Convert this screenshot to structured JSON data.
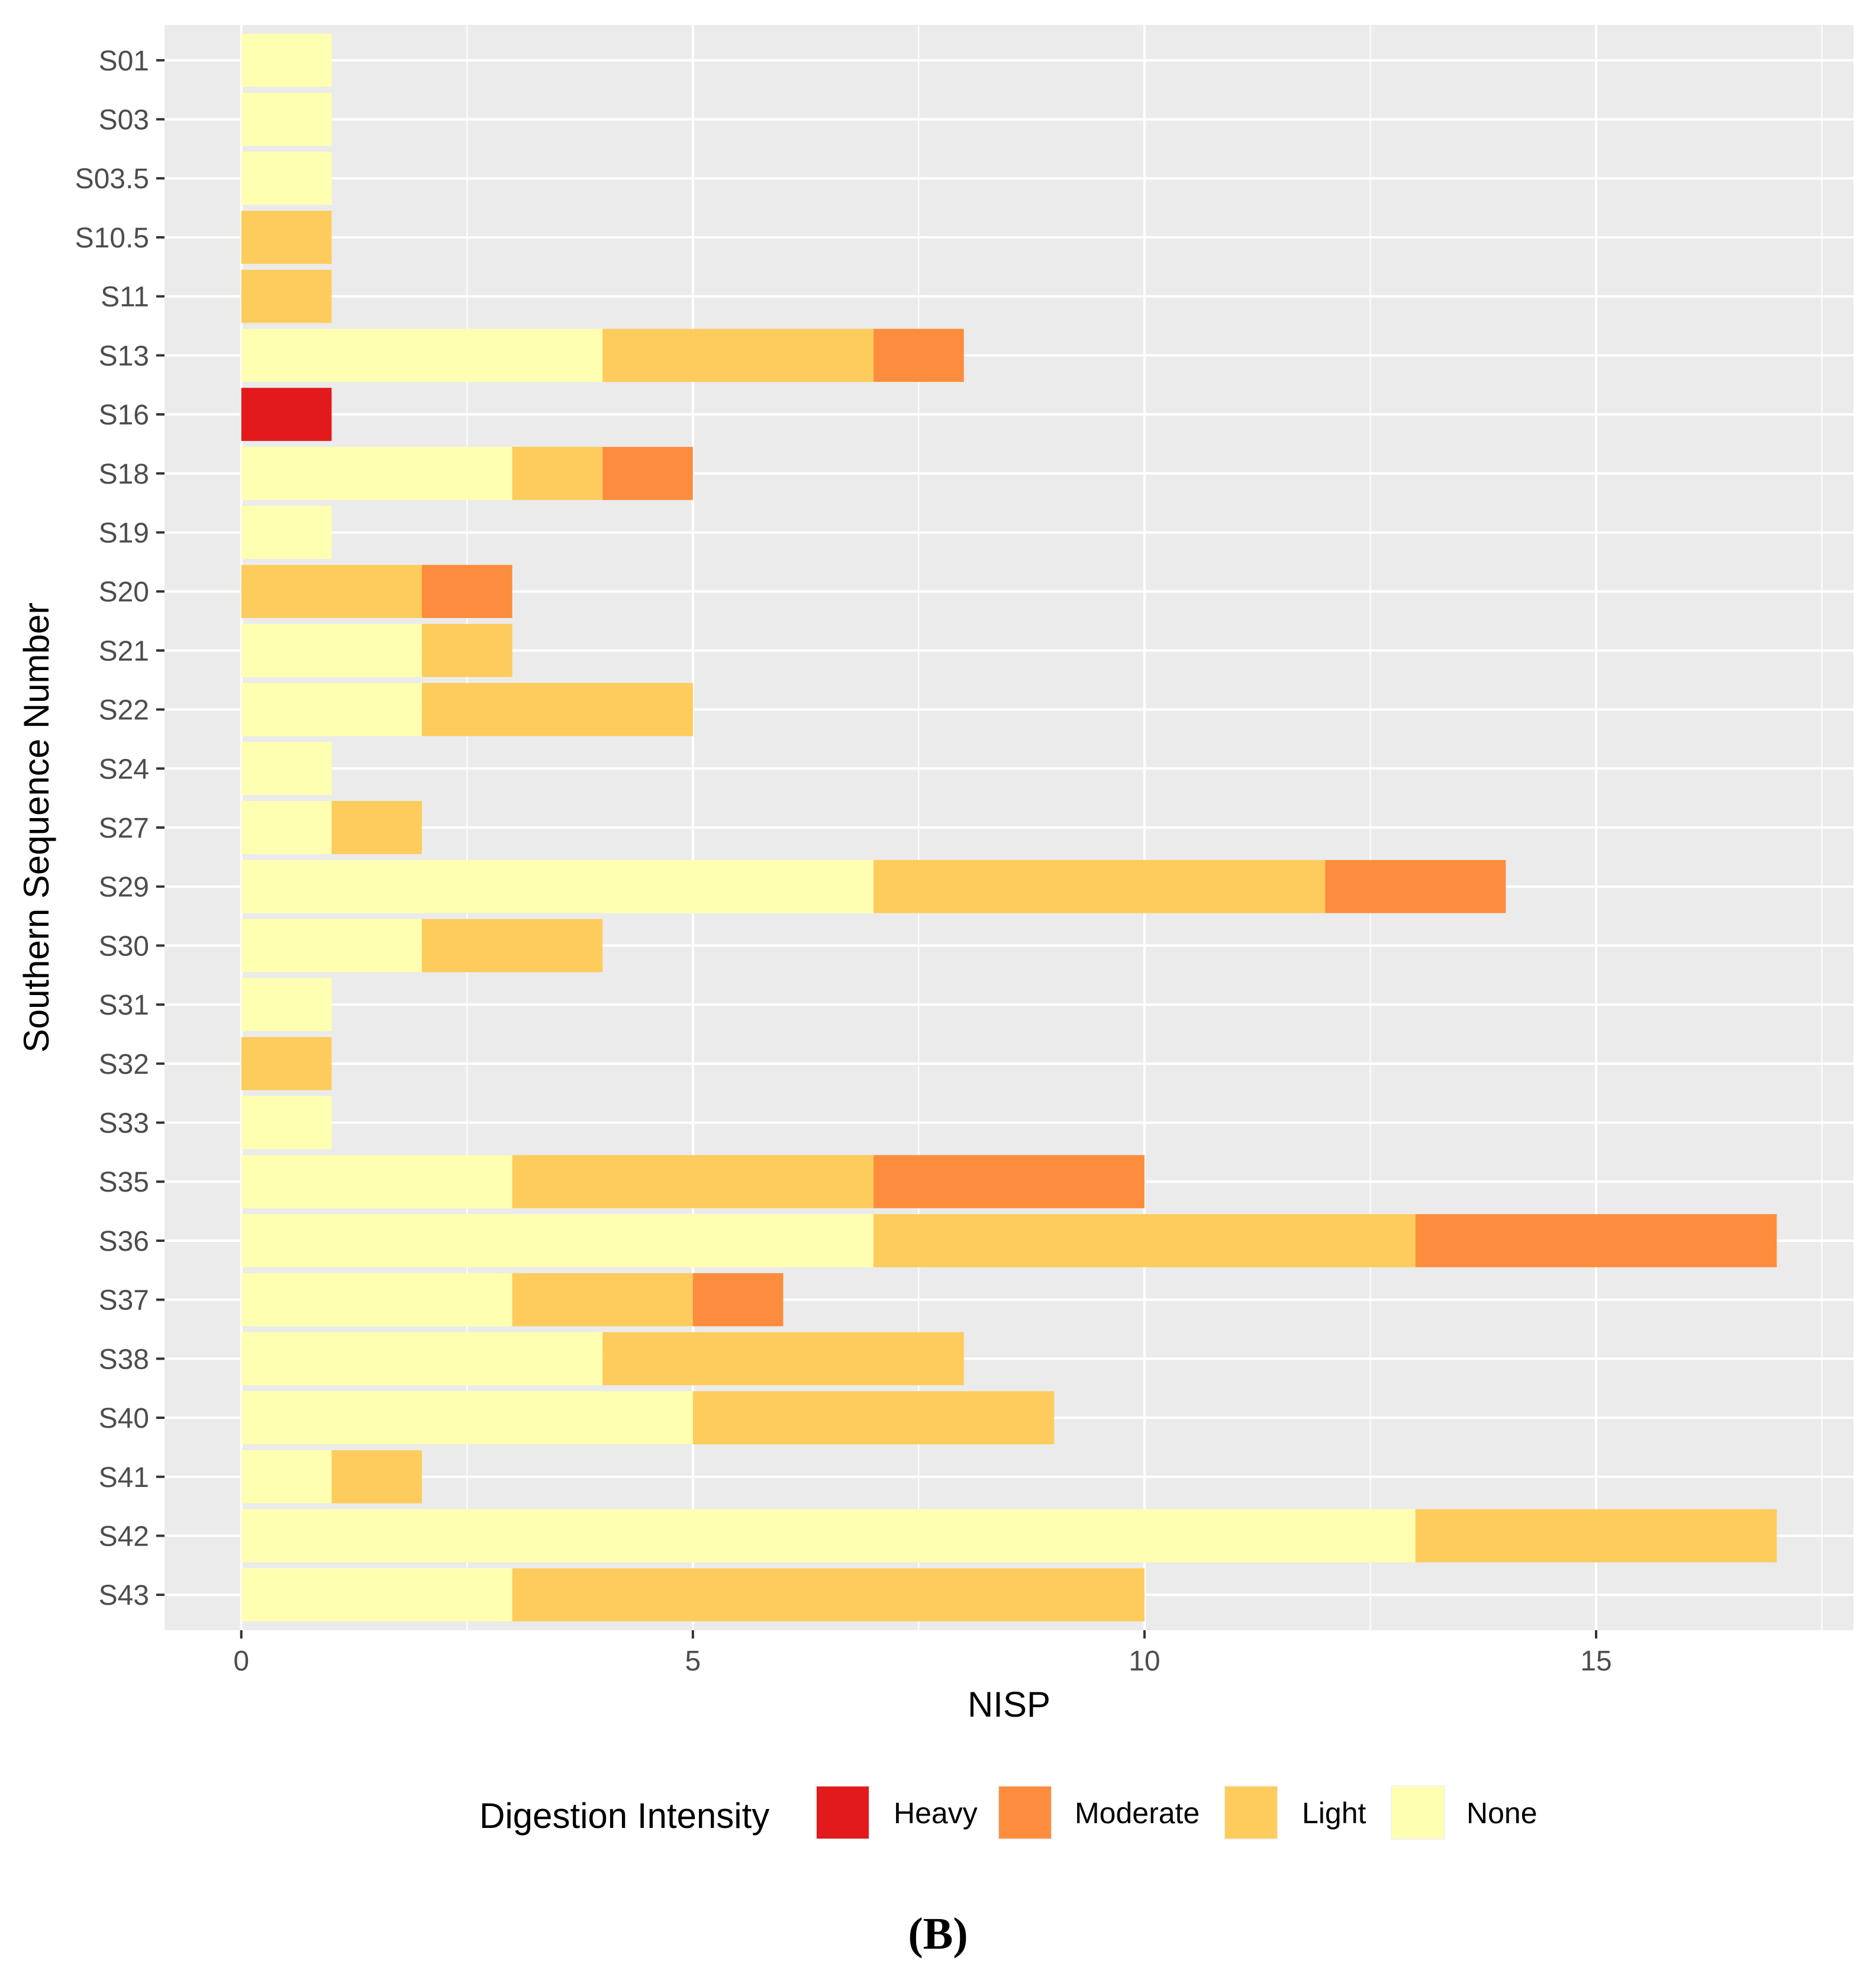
{
  "chart_data": {
    "type": "bar",
    "orientation": "horizontal",
    "stacked": true,
    "categories": [
      "S01",
      "S03",
      "S03.5",
      "S10.5",
      "S11",
      "S13",
      "S16",
      "S18",
      "S19",
      "S20",
      "S21",
      "S22",
      "S24",
      "S27",
      "S29",
      "S30",
      "S31",
      "S32",
      "S33",
      "S35",
      "S36",
      "S37",
      "S38",
      "S40",
      "S41",
      "S42",
      "S43"
    ],
    "series": [
      {
        "name": "None",
        "color": "#FFFFB2",
        "values": [
          1,
          1,
          1,
          0,
          0,
          4,
          0,
          3,
          1,
          0,
          2,
          2,
          1,
          1,
          7,
          2,
          1,
          0,
          1,
          3,
          7,
          3,
          4,
          5,
          1,
          13,
          3
        ]
      },
      {
        "name": "Light",
        "color": "#FECC5C",
        "values": [
          0,
          0,
          0,
          1,
          1,
          3,
          0,
          1,
          0,
          2,
          1,
          3,
          0,
          1,
          5,
          2,
          0,
          1,
          0,
          4,
          6,
          2,
          4,
          4,
          1,
          4,
          7
        ]
      },
      {
        "name": "Moderate",
        "color": "#FD8D3C",
        "values": [
          0,
          0,
          0,
          0,
          0,
          1,
          0,
          1,
          0,
          1,
          0,
          0,
          0,
          0,
          2,
          0,
          0,
          0,
          0,
          3,
          4,
          1,
          0,
          0,
          0,
          0,
          0
        ]
      },
      {
        "name": "Heavy",
        "color": "#E31A1C",
        "values": [
          0,
          0,
          0,
          0,
          0,
          0,
          1,
          0,
          0,
          0,
          0,
          0,
          0,
          0,
          0,
          0,
          0,
          0,
          0,
          0,
          0,
          0,
          0,
          0,
          0,
          0,
          0
        ]
      }
    ],
    "xlabel": "NISP",
    "ylabel": "Southern Sequence Number",
    "xlim": [
      -0.85,
      17.85
    ],
    "x_ticks": [
      "0",
      "5",
      "10",
      "15"
    ],
    "x_tick_values": [
      0,
      5,
      10,
      15
    ],
    "grid": true,
    "panel_background": "#EBEBEB",
    "legend": {
      "title": "Digestion Intensity",
      "position": "bottom",
      "order": [
        "Heavy",
        "Moderate",
        "Light",
        "None"
      ]
    },
    "panel_label": "(B)"
  }
}
